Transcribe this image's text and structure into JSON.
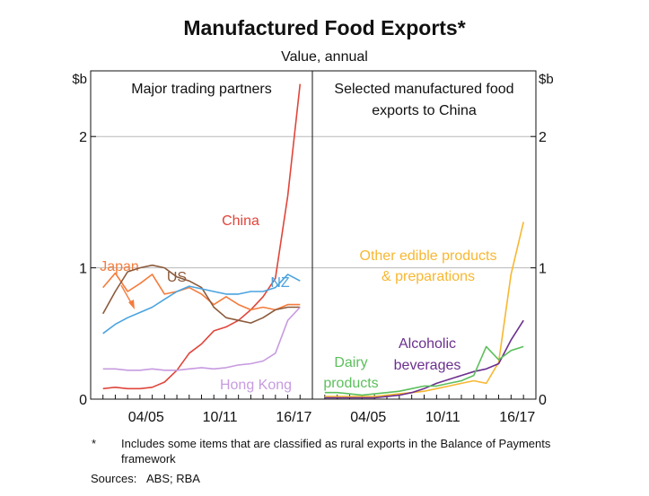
{
  "title": "Manufactured Food Exports*",
  "subtitle": "Value, annual",
  "footnote": {
    "marker": "*",
    "text": "Includes some items that are classified as rural exports in the Balance of Payments framework"
  },
  "sources": {
    "label": "Sources:",
    "text": "ABS; RBA"
  },
  "chart_data": [
    {
      "type": "line",
      "panel_title": [
        "Major trading partners"
      ],
      "ylabel": "$b",
      "ylim": [
        0,
        2.5
      ],
      "yticks": [
        "0",
        "1",
        "2"
      ],
      "xlim": [
        2000,
        2018
      ],
      "xticks": [
        "04/05",
        "10/11",
        "16/17"
      ],
      "x": [
        2001,
        2002,
        2003,
        2004,
        2005,
        2006,
        2007,
        2008,
        2009,
        2010,
        2011,
        2012,
        2013,
        2014,
        2015,
        2016,
        2017
      ],
      "series": [
        {
          "name": "China",
          "color": "#e0453a",
          "values": [
            0.08,
            0.09,
            0.08,
            0.08,
            0.09,
            0.13,
            0.22,
            0.35,
            0.42,
            0.52,
            0.55,
            0.6,
            0.68,
            0.78,
            0.92,
            1.55,
            2.4
          ]
        },
        {
          "name": "Japan",
          "color": "#f47c3c",
          "values": [
            0.85,
            0.96,
            0.82,
            0.88,
            0.95,
            0.8,
            0.82,
            0.85,
            0.8,
            0.72,
            0.78,
            0.72,
            0.68,
            0.7,
            0.68,
            0.72,
            0.72
          ]
        },
        {
          "name": "US",
          "color": "#8b5a3c",
          "values": [
            0.65,
            0.82,
            0.97,
            1.0,
            1.02,
            1.0,
            0.93,
            0.9,
            0.85,
            0.7,
            0.62,
            0.6,
            0.58,
            0.62,
            0.68,
            0.7,
            0.7
          ]
        },
        {
          "name": "NZ",
          "color": "#4aa3df",
          "values": [
            0.5,
            0.57,
            0.62,
            0.66,
            0.7,
            0.76,
            0.82,
            0.86,
            0.84,
            0.82,
            0.8,
            0.8,
            0.82,
            0.82,
            0.85,
            0.95,
            0.9
          ]
        },
        {
          "name": "Hong Kong",
          "color": "#c79be0",
          "values": [
            0.23,
            0.23,
            0.22,
            0.22,
            0.23,
            0.22,
            0.22,
            0.23,
            0.24,
            0.23,
            0.24,
            0.26,
            0.27,
            0.29,
            0.35,
            0.6,
            0.7
          ]
        }
      ]
    },
    {
      "type": "line",
      "panel_title": [
        "Selected manufactured food",
        "exports to China"
      ],
      "ylabel": "$b",
      "ylim": [
        0,
        2.5
      ],
      "yticks": [
        "0",
        "1",
        "2"
      ],
      "xlim": [
        2000,
        2018
      ],
      "xticks": [
        "04/05",
        "10/11",
        "16/17"
      ],
      "x": [
        2001,
        2002,
        2003,
        2004,
        2005,
        2006,
        2007,
        2008,
        2009,
        2010,
        2011,
        2012,
        2013,
        2014,
        2015,
        2016,
        2017
      ],
      "series": [
        {
          "name": [
            "Other edible products",
            "& preparations"
          ],
          "color": "#f7b731",
          "values": [
            0.02,
            0.02,
            0.02,
            0.02,
            0.02,
            0.03,
            0.04,
            0.05,
            0.06,
            0.08,
            0.1,
            0.12,
            0.14,
            0.12,
            0.28,
            0.95,
            1.35
          ]
        },
        {
          "name": [
            "Alcoholic",
            "beverages"
          ],
          "color": "#6b2f8f",
          "values": [
            0.01,
            0.01,
            0.01,
            0.01,
            0.01,
            0.02,
            0.03,
            0.05,
            0.08,
            0.12,
            0.15,
            0.18,
            0.21,
            0.23,
            0.27,
            0.45,
            0.6
          ]
        },
        {
          "name": [
            "Dairy",
            "products"
          ],
          "color": "#5cbf5c",
          "values": [
            0.05,
            0.05,
            0.04,
            0.03,
            0.04,
            0.05,
            0.06,
            0.08,
            0.1,
            0.1,
            0.12,
            0.14,
            0.18,
            0.4,
            0.3,
            0.37,
            0.4
          ]
        }
      ]
    }
  ]
}
